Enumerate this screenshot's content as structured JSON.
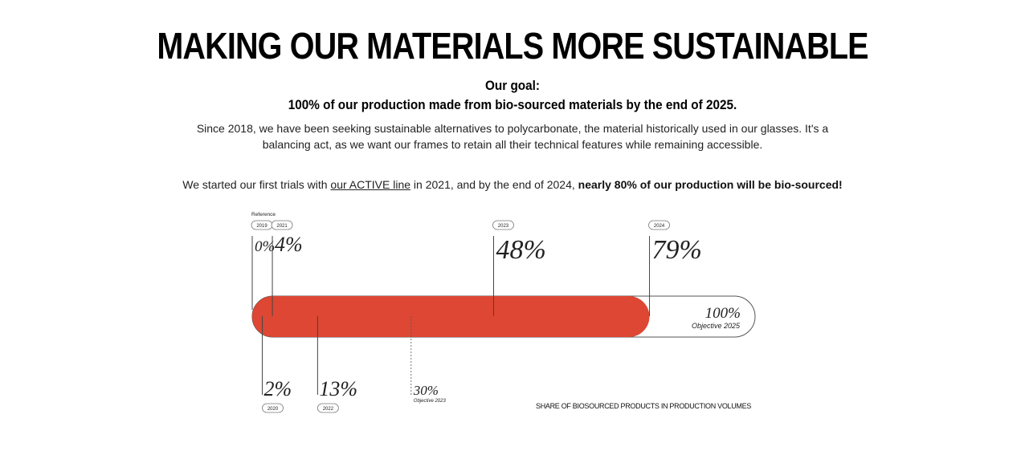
{
  "header": {
    "title": "MAKING OUR MATERIALS MORE SUSTAINABLE",
    "goal_label": "Our goal:",
    "goal_text": "100% of our production made from bio-sourced materials by the end of 2025."
  },
  "intro": {
    "paragraph": "Since 2018, we have been seeking sustainable alternatives to polycarbonate, the material historically used in our glasses. It's a balancing act, as we want our frames to retain all their technical features while remaining accessible.",
    "trials_prefix": "We started our first trials with ",
    "trials_link": "our ACTIVE line",
    "trials_middle": " in 2021, and by the end of 2024, ",
    "trials_bold": "nearly 80% of our production will be bio-sourced!"
  },
  "chart_data": {
    "type": "bar",
    "title": "",
    "caption": "SHARE OF BIOSOURCED PRODUCTS IN PRODUCTION VOLUMES",
    "xlim": [
      0,
      100
    ],
    "reference_label": "Reference",
    "current_value": 79,
    "points": [
      {
        "year": "2019",
        "label": "0%",
        "value": 0,
        "side": "top"
      },
      {
        "year": "2020",
        "label": "2%",
        "value": 2,
        "side": "bottom"
      },
      {
        "year": "2021",
        "label": "4%",
        "value": 4,
        "side": "top"
      },
      {
        "year": "2022",
        "label": "13%",
        "value": 13,
        "side": "bottom"
      },
      {
        "year": "2023",
        "label": "48%",
        "value": 48,
        "side": "top"
      },
      {
        "year": "2024",
        "label": "79%",
        "value": 79,
        "side": "top"
      }
    ],
    "objectives": [
      {
        "label": "30%",
        "note": "Objective 2023",
        "value": 30
      },
      {
        "label": "100%",
        "note": "Objective 2025",
        "value": 100
      }
    ],
    "colors": {
      "fill": "#dd4733",
      "outline": "#555555",
      "text": "#222222"
    }
  }
}
